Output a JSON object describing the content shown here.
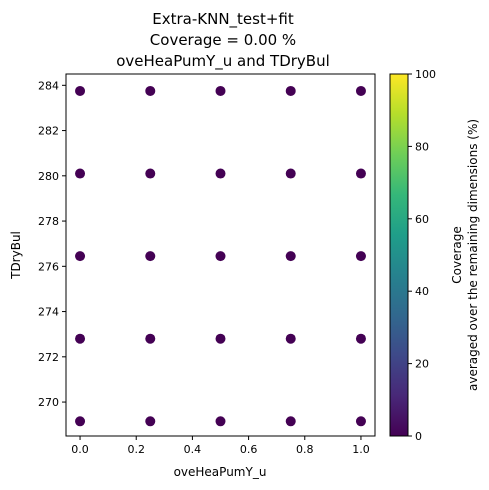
{
  "chart_data": {
    "type": "scatter",
    "title_lines": [
      "Extra-KNN_test+fit",
      "Coverage = 0.00 %",
      "oveHeaPumY_u and TDryBul"
    ],
    "xlabel": "oveHeaPumY_u",
    "ylabel": "TDryBul",
    "xlim": [
      -0.05,
      1.05
    ],
    "ylim": [
      268.5,
      284.5
    ],
    "xticks": [
      0.0,
      0.2,
      0.4,
      0.6,
      0.8,
      1.0
    ],
    "xtick_labels": [
      "0.0",
      "0.2",
      "0.4",
      "0.6",
      "0.8",
      "1.0"
    ],
    "yticks": [
      270,
      272,
      274,
      276,
      278,
      280,
      282,
      284
    ],
    "ytick_labels": [
      "270",
      "272",
      "274",
      "276",
      "278",
      "280",
      "282",
      "284"
    ],
    "x_values": [
      0.0,
      0.25,
      0.5,
      0.75,
      1.0
    ],
    "y_values": [
      269.15,
      272.8,
      276.45,
      280.1,
      283.75
    ],
    "point_coverage": 0,
    "point_color": "#440154",
    "colorbar": {
      "range": [
        0,
        100
      ],
      "ticks": [
        0,
        20,
        40,
        60,
        80,
        100
      ],
      "tick_labels": [
        "0",
        "20",
        "40",
        "60",
        "80",
        "100"
      ],
      "label_lines": [
        "Coverage",
        "averaged over the remaining dimensions (%)"
      ],
      "colormap": "viridis",
      "stops": [
        "#440154",
        "#482878",
        "#3e4989",
        "#31688e",
        "#26828e",
        "#1f9e89",
        "#35b779",
        "#6ece58",
        "#b5de2b",
        "#fde725"
      ]
    },
    "grid": false
  }
}
